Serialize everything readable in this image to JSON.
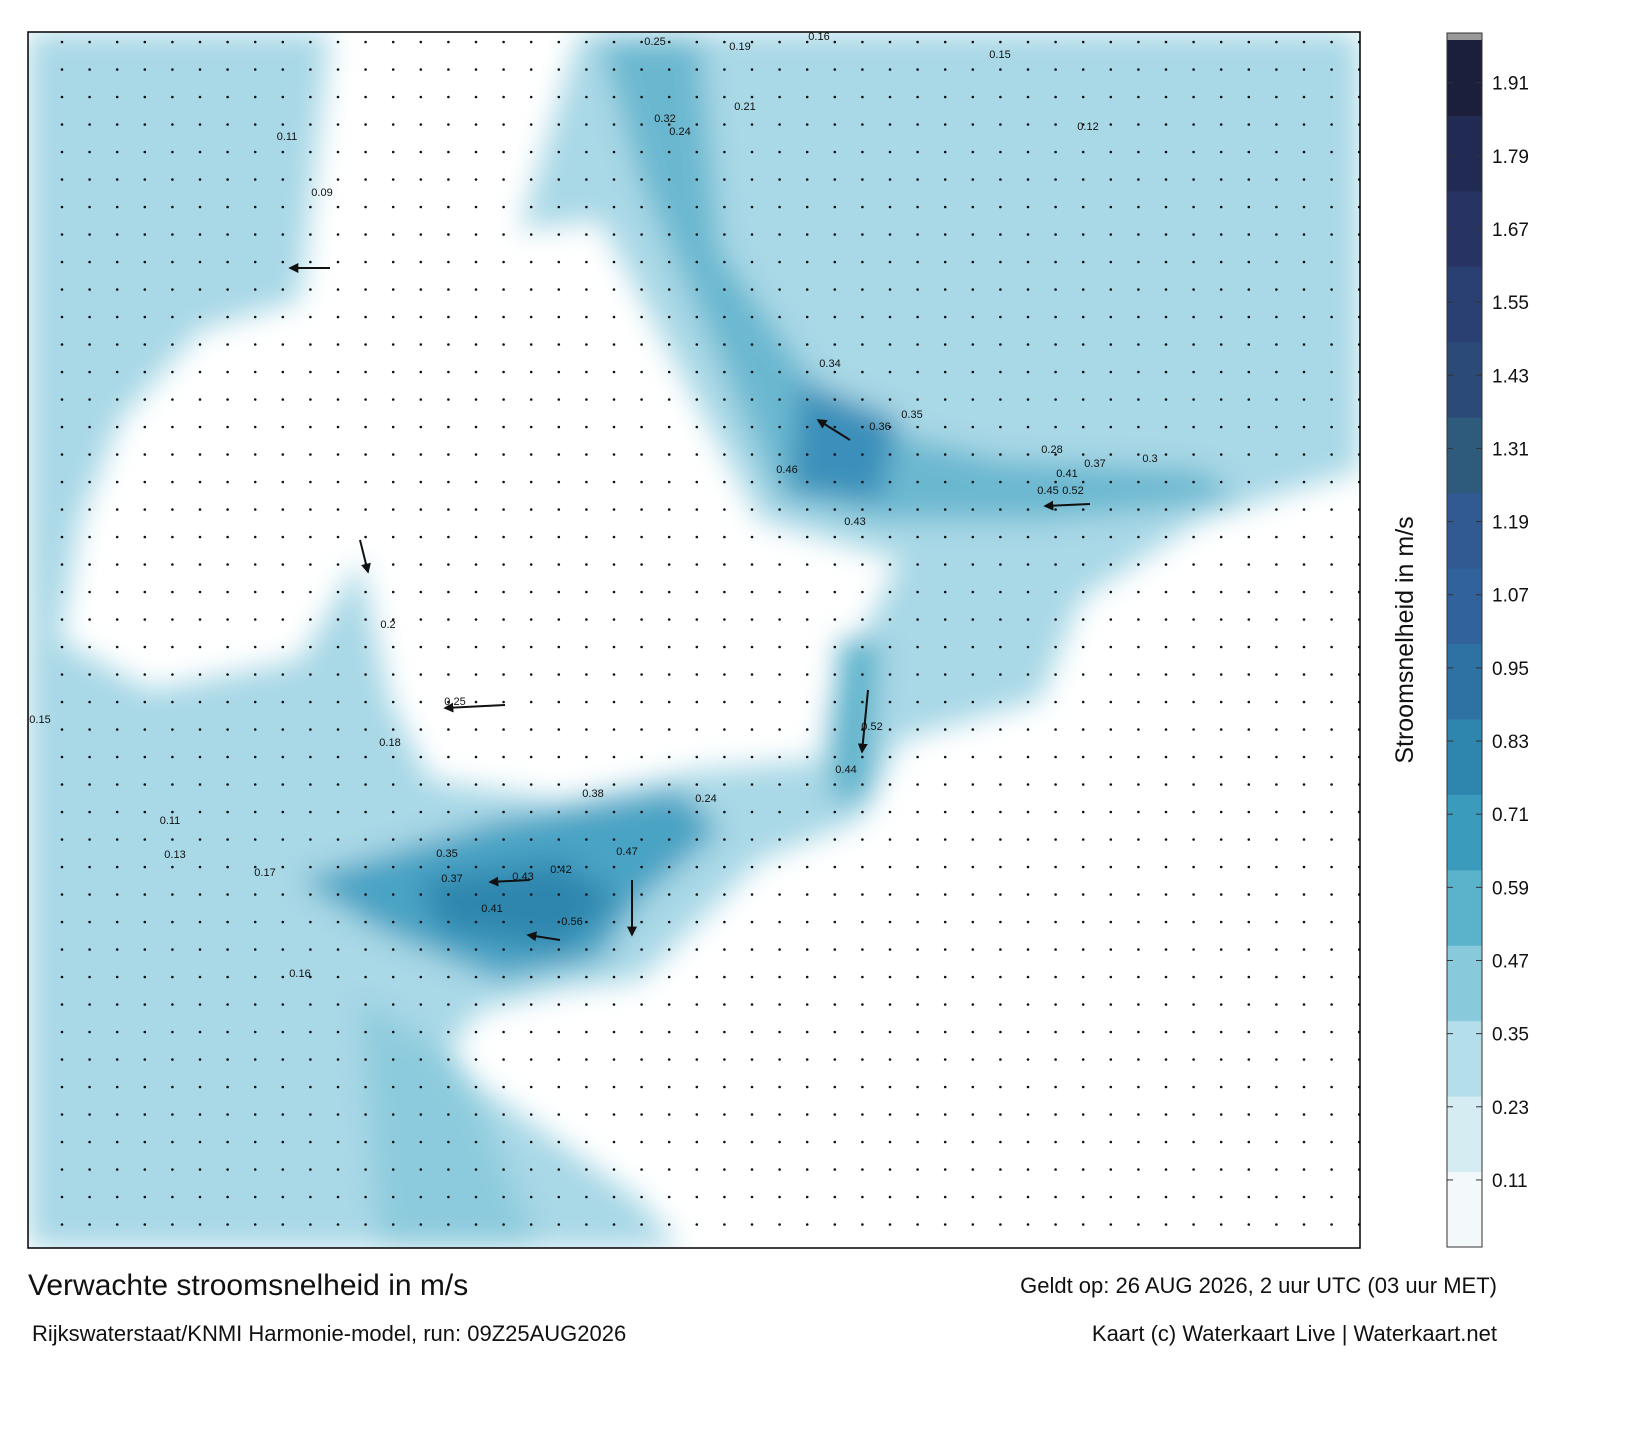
{
  "title": "Verwachte stroomsnelheid in m/s",
  "subtitle": "Rijkswaterstaat/KNMI Harmonie-model, run: 09Z25AUG2026",
  "valid": "Geldt op: 26 AUG 2026, 2 uur UTC (03 uur MET)",
  "credit": "Kaart (c) Waterkaart Live | Waterkaart.net",
  "colorbar": {
    "label": "Stroomsnelheid in m/s",
    "lim": [
      0,
      1.98
    ],
    "ticks": [
      0.11,
      0.23,
      0.35,
      0.47,
      0.59,
      0.71,
      0.83,
      0.95,
      1.07,
      1.19,
      1.31,
      1.43,
      1.55,
      1.67,
      1.79,
      1.91
    ],
    "colors": [
      "#f3f9fb",
      "#d6ecf3",
      "#b4deea",
      "#88c9dc",
      "#5bb2cb",
      "#3a9bbd",
      "#2e86ae",
      "#2e71a3",
      "#31629c",
      "#315a93",
      "#2e5a7c",
      "#2b4a78",
      "#2a3f72",
      "#273463",
      "#212a52",
      "#1b1f3b"
    ]
  },
  "map": {
    "labels": [
      0.25,
      0.32,
      0.24,
      0.21,
      0.19,
      0.34,
      0.36,
      0.35,
      0.46,
      0.43,
      0.52,
      0.45,
      0.41,
      0.37,
      0.3,
      0.28,
      0.47,
      0.42,
      0.43,
      0.41,
      0.37,
      0.35,
      0.56,
      0.44,
      0.52,
      0.38,
      0.24,
      0.17,
      0.15,
      0.13,
      0.16,
      0.11,
      0.2,
      0.25,
      0.18,
      0.09,
      0.11,
      0.12,
      0.15,
      0.16
    ]
  }
}
